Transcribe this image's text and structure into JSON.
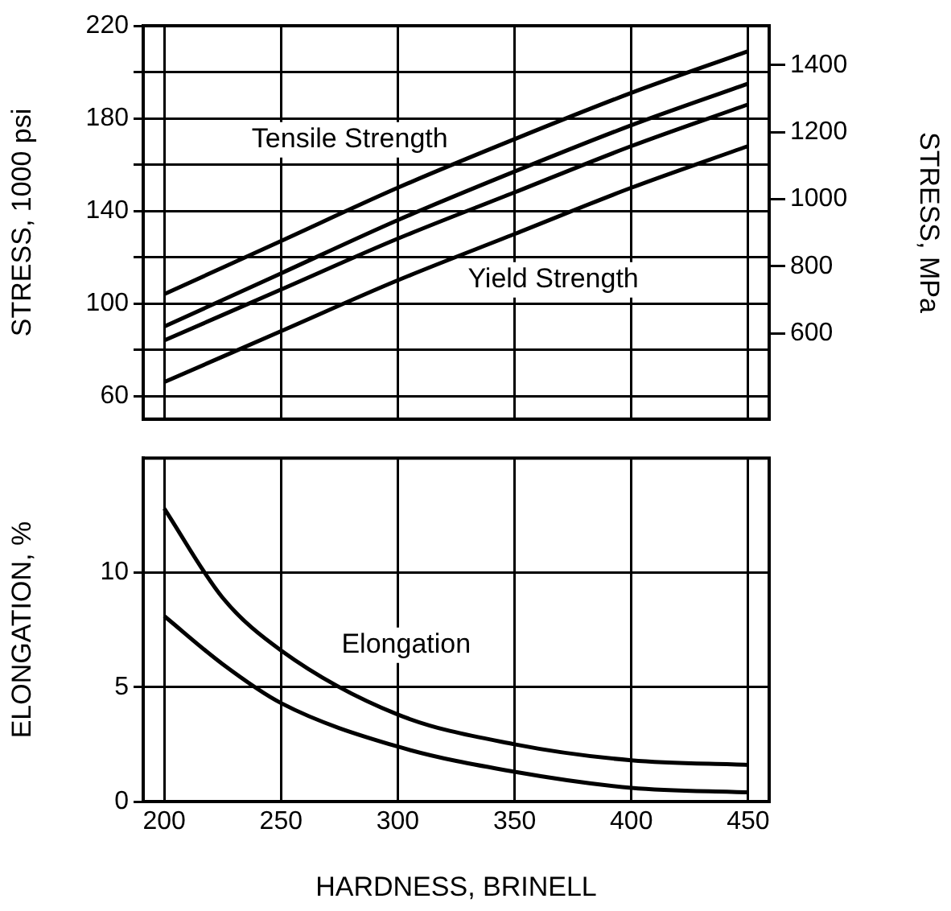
{
  "chart_data": [
    {
      "type": "line",
      "ylabel": "STRESS, 1000 psi",
      "y2label": "STRESS, MPa",
      "xlim": [
        191,
        459
      ],
      "xticks": [
        200,
        250,
        300,
        350,
        400,
        450
      ],
      "ylim": [
        50,
        220
      ],
      "yticks": [
        60,
        {
          "value": 80,
          "label": null
        },
        100,
        {
          "value": 120,
          "label": null
        },
        140,
        {
          "value": 160,
          "label": null
        },
        180,
        {
          "value": 200,
          "label": null
        },
        220
      ],
      "y2lim": [
        344.7,
        1516.9
      ],
      "y2ticks": [
        600,
        800,
        1000,
        1200,
        1400
      ],
      "grid": true,
      "tick_labels": "y",
      "line_style": "solid",
      "x": [
        200,
        250,
        300,
        350,
        400,
        450
      ],
      "series": [
        {
          "color": "#000000",
          "values": [
            104,
            127,
            150,
            171,
            191,
            209
          ]
        },
        {
          "color": "#000000",
          "values": [
            90,
            113,
            136,
            157,
            177,
            195
          ]
        },
        {
          "color": "#000000",
          "values": [
            84,
            106,
            128,
            148,
            168,
            186
          ]
        },
        {
          "color": "#000000",
          "values": [
            66,
            88,
            110,
            130,
            150,
            168
          ]
        }
      ],
      "annotations": [
        "Tensile Strength",
        "Yield Strength"
      ]
    },
    {
      "type": "line",
      "xlabel": "HARDNESS, BRINELL",
      "ylabel": "ELONGATION, %",
      "xlim": [
        191,
        459
      ],
      "xticks": [
        200,
        250,
        300,
        350,
        400,
        450
      ],
      "ylim": [
        0,
        15
      ],
      "yticks": [
        0,
        5,
        10
      ],
      "grid": true,
      "line_style": "solid",
      "x": [
        200,
        225,
        250,
        300,
        350,
        400,
        450
      ],
      "series": [
        {
          "color": "#000000",
          "values": [
            12.8,
            8.9,
            6.6,
            3.8,
            2.5,
            1.8,
            1.6
          ]
        },
        {
          "color": "#000000",
          "values": [
            8.1,
            6.0,
            4.3,
            2.4,
            1.3,
            0.6,
            0.4
          ]
        }
      ],
      "annotations": [
        "Elongation"
      ]
    }
  ]
}
